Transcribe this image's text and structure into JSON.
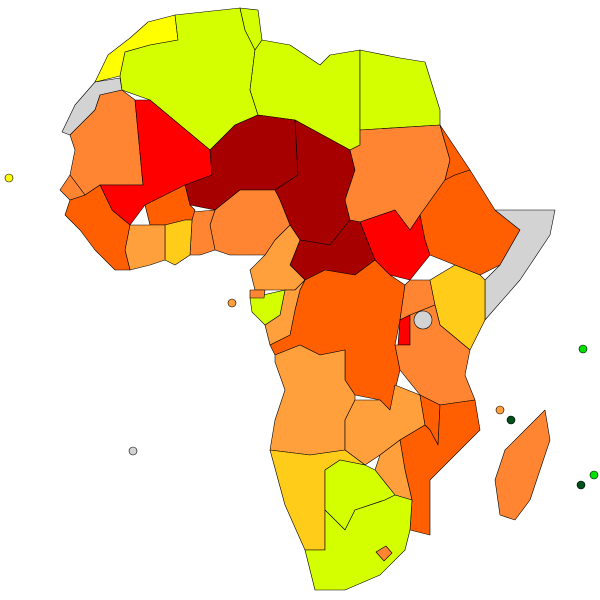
{
  "map": {
    "type": "choropleth",
    "region": "Africa",
    "legend": null,
    "palette": {
      "yellow": "#ffff00",
      "yellowgreen": "#d4ff00",
      "gold": "#ffcc1a",
      "lightorange": "#ffa03c",
      "orange": "#ff8533",
      "orangered": "#ff5f00",
      "red": "#ff0000",
      "darkred": "#a60000",
      "gray": "#d3d3d3",
      "green": "#00e000",
      "darkgreen": "#00501a",
      "border": "#000000"
    },
    "regions": {
      "morocco": "yellow",
      "western-sahara": "gray",
      "algeria": "yellowgreen",
      "tunisia": "yellowgreen",
      "libya": "yellowgreen",
      "egypt": "yellowgreen",
      "mauritania": "orange",
      "mali": "red",
      "niger": "darkred",
      "chad": "darkred",
      "sudan": "orange",
      "eritrea": "orangered",
      "ethiopia": "orangered",
      "somalia": "gray",
      "south-sudan": "red",
      "car": "darkred",
      "cameroon": "lightorange",
      "nigeria": "orange",
      "benin-togo": "orange",
      "ghana": "gold",
      "burkina-faso": "orangered",
      "ivory-coast": "lightorange",
      "guinea-liberia-sierra-leone": "orangered",
      "senegal-gambia": "orange",
      "drc": "orangered",
      "congo": "lightorange",
      "gabon": "yellowgreen",
      "equatorial-guinea": "orange",
      "uganda": "orange",
      "kenya": "gold",
      "rwanda-burundi": "red",
      "tanzania": "orange",
      "angola": "lightorange",
      "zambia": "lightorange",
      "malawi": "orangered",
      "mozambique": "orangered",
      "zimbabwe": "lightorange",
      "namibia": "gold",
      "botswana": "yellowgreen",
      "south-africa": "yellowgreen",
      "lesotho": "orange",
      "madagascar": "orange",
      "cape-verde": "yellow",
      "sao-tome": "lightorange",
      "saint-helena": "gray",
      "seychelles": "green",
      "comoros": "darkgreen",
      "mayotte": "lightorange",
      "mauritius": "green",
      "reunion": "darkgreen",
      "lake-victoria": "gray"
    }
  }
}
